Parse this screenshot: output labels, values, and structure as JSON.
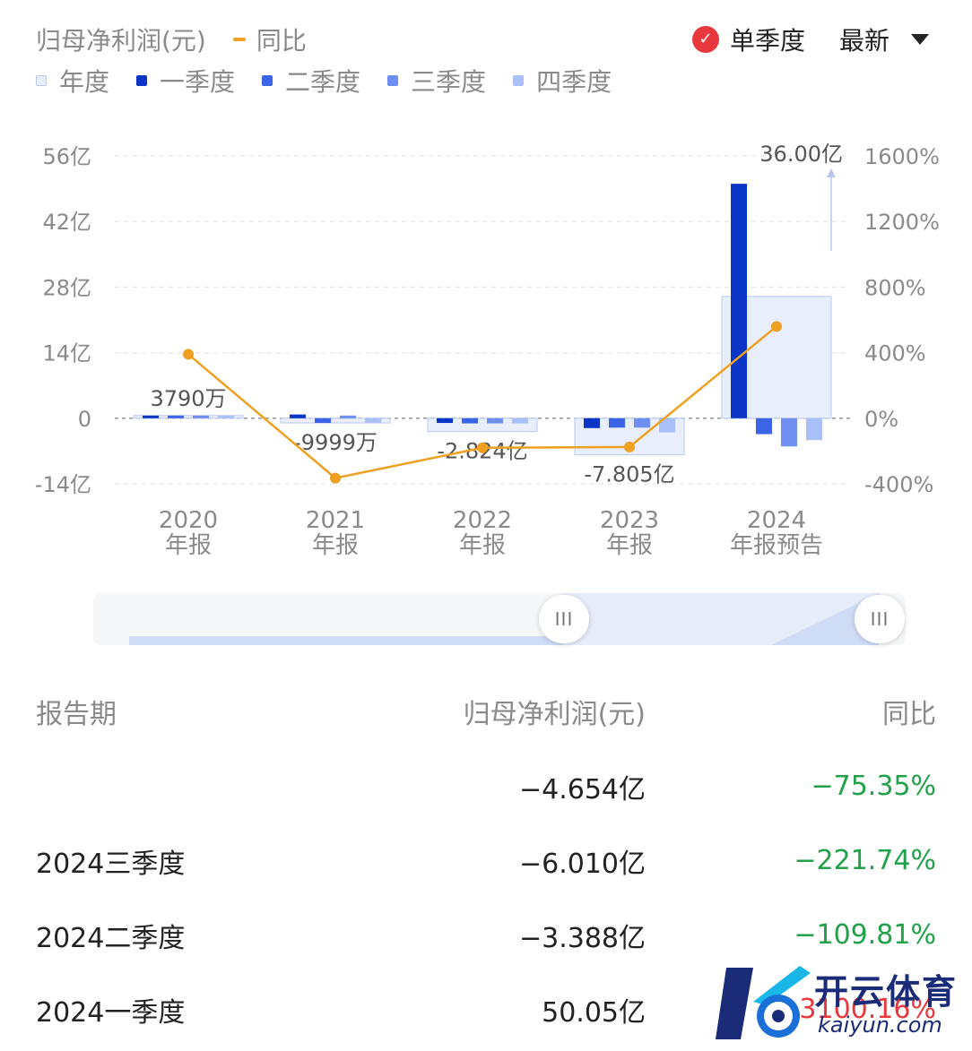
{
  "legend": {
    "metric_label": "归母净利润(元)",
    "yoy_label": "同比",
    "period_items": [
      {
        "label": "年度",
        "color": "#e8eefb"
      },
      {
        "label": "一季度",
        "color": "#0b35c7"
      },
      {
        "label": "二季度",
        "color": "#3b64e6"
      },
      {
        "label": "三季度",
        "color": "#6e8ff0"
      },
      {
        "label": "四季度",
        "color": "#a9bff7"
      }
    ]
  },
  "controls": {
    "single_quarter_label": "单季度",
    "single_quarter_checked": true,
    "sort_label": "最新",
    "checkmark_icon": "check-icon",
    "dropdown_icon": "caret-down-icon"
  },
  "colors": {
    "yoy_line": "#f0a020",
    "check_red": "#e8383d",
    "positive": "#e8383d",
    "negative": "#23a04a",
    "annual_fill": "#e8eefb",
    "annual_stroke": "#b8c9ef"
  },
  "chart_data": {
    "type": "bar",
    "categories": [
      "2020\n年报",
      "2021\n年报",
      "2022\n年报",
      "2023\n年报",
      "2024\n年报预告"
    ],
    "y_left": {
      "ticks": [
        "56亿",
        "42亿",
        "28亿",
        "14亿",
        "0",
        "-14亿"
      ],
      "range": [
        -14,
        56
      ],
      "unit": "亿"
    },
    "y_right": {
      "ticks": [
        "1600%",
        "1200%",
        "800%",
        "400%",
        "0%",
        "-400%"
      ],
      "range": [
        -400,
        1600
      ]
    },
    "annual": {
      "name": "年度",
      "values": [
        0.379,
        -0.9999,
        -2.824,
        -7.805,
        36.0
      ],
      "labels": [
        "3790万",
        "-9999万",
        "-2.824亿",
        "-7.805亿",
        "36.00亿"
      ]
    },
    "quarters": [
      {
        "name": "一季度",
        "values": [
          0.2,
          0.8,
          -1.0,
          -2.1,
          50.05
        ]
      },
      {
        "name": "二季度",
        "values": [
          0.2,
          -1.0,
          -1.1,
          -2.0,
          -3.388
        ]
      },
      {
        "name": "三季度",
        "values": [
          0.2,
          0.5,
          -1.1,
          -2.0,
          -6.01
        ]
      },
      {
        "name": "四季度",
        "values": [
          0.2,
          -0.9,
          -1.1,
          -3.0,
          -4.654
        ]
      }
    ],
    "yoy": {
      "name": "同比",
      "values": [
        390,
        -365,
        -180,
        -175,
        560
      ]
    },
    "grid": true
  },
  "slider": {
    "handle_icon": "grip-icon",
    "handle_glyph": "III"
  },
  "table": {
    "headers": {
      "period": "报告期",
      "profit": "归母净利润(元)",
      "yoy": "同比"
    },
    "rows": [
      {
        "period": "",
        "profit": "−4.654亿",
        "yoy": "−75.35%",
        "sign": "neg"
      },
      {
        "period": "2024三季度",
        "profit": "−6.010亿",
        "yoy": "−221.74%",
        "sign": "neg"
      },
      {
        "period": "2024二季度",
        "profit": "−3.388亿",
        "yoy": "−109.81%",
        "sign": "neg"
      },
      {
        "period": "2024一季度",
        "profit": "50.05亿",
        "yoy": "3100.16%",
        "sign": "pos"
      }
    ]
  },
  "watermark": {
    "title": "开云体育",
    "sub": "kaiyun.com",
    "logo_icon": "soccer-logo-icon"
  }
}
